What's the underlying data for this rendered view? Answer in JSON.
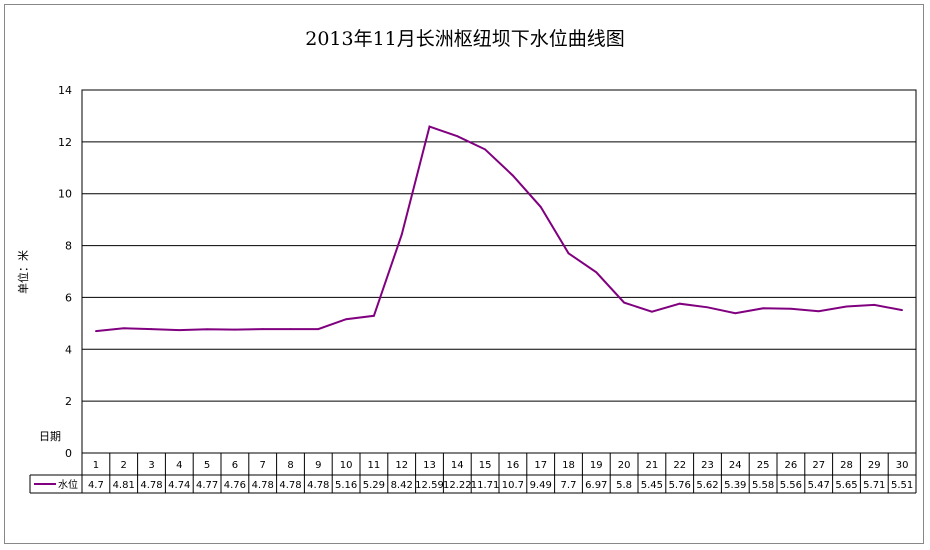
{
  "chart_data": {
    "type": "line",
    "title": "2013年11月长洲枢纽坝下水位曲线图",
    "ylabel": "单位：米",
    "xlabel": "日期",
    "ylim": [
      0,
      14
    ],
    "yticks": [
      0,
      2,
      4,
      6,
      8,
      10,
      12,
      14
    ],
    "grid": true,
    "legend": "table-left",
    "series_color": "#800080",
    "categories": [
      "1",
      "2",
      "3",
      "4",
      "5",
      "6",
      "7",
      "8",
      "9",
      "10",
      "11",
      "12",
      "13",
      "14",
      "15",
      "16",
      "17",
      "18",
      "19",
      "20",
      "21",
      "22",
      "23",
      "24",
      "25",
      "26",
      "27",
      "28",
      "29",
      "30"
    ],
    "series": [
      {
        "name": "水位",
        "values": [
          4.7,
          4.81,
          4.78,
          4.74,
          4.77,
          4.76,
          4.78,
          4.78,
          4.78,
          5.16,
          5.29,
          8.42,
          12.59,
          12.22,
          11.71,
          10.7,
          9.49,
          7.7,
          6.97,
          5.8,
          5.45,
          5.76,
          5.62,
          5.39,
          5.58,
          5.56,
          5.47,
          5.65,
          5.71,
          5.51
        ]
      }
    ]
  }
}
